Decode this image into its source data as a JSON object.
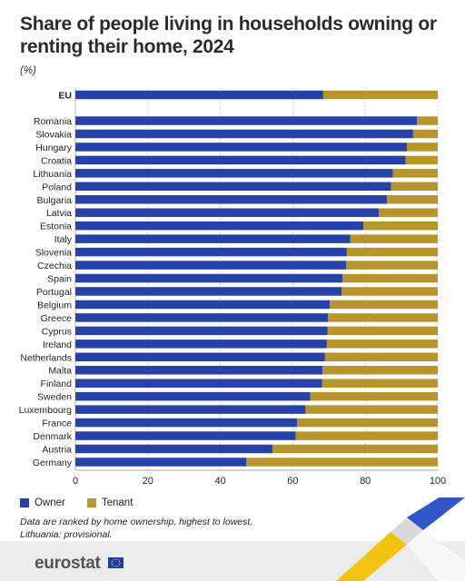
{
  "header": {
    "title": "Share of people living in households owning or renting their home, 2024",
    "unit": "(%)"
  },
  "colors": {
    "owner": "#2641a8",
    "tenant": "#b8952b",
    "grid": "#c8c8c8"
  },
  "legend": {
    "owner_label": "Owner",
    "tenant_label": "Tenant"
  },
  "notes": {
    "line1": "Data are ranked by home ownership, highest to lowest.",
    "line2": "Lithuania: provisional."
  },
  "footer": {
    "logo_text": "eurostat"
  },
  "chart_data": {
    "type": "bar",
    "orientation": "horizontal",
    "stacked": true,
    "categories": [
      "EU",
      "Romania",
      "Slovakia",
      "Hungary",
      "Croatia",
      "Lithuania",
      "Poland",
      "Bulgaria",
      "Latvia",
      "Estonia",
      "Italy",
      "Slovenia",
      "Czechia",
      "Spain",
      "Portugal",
      "Belgium",
      "Greece",
      "Cyprus",
      "Ireland",
      "Netherlands",
      "Malta",
      "Finland",
      "Sweden",
      "Luxembourg",
      "France",
      "Denmark",
      "Austria",
      "Germany"
    ],
    "series": [
      {
        "name": "Owner",
        "values": [
          68.4,
          94.3,
          93.2,
          91.5,
          91.1,
          87.6,
          87.1,
          86.0,
          83.7,
          79.5,
          75.9,
          74.9,
          74.7,
          73.7,
          73.5,
          70.2,
          69.7,
          69.6,
          69.4,
          68.9,
          68.2,
          68.1,
          64.8,
          63.5,
          61.2,
          60.8,
          54.4,
          47.2
        ]
      },
      {
        "name": "Tenant",
        "values": [
          31.6,
          5.7,
          6.8,
          8.5,
          8.9,
          12.4,
          12.9,
          14.0,
          16.3,
          20.5,
          24.1,
          25.1,
          25.3,
          26.3,
          26.5,
          29.8,
          30.3,
          30.4,
          30.6,
          31.1,
          31.8,
          31.9,
          35.2,
          36.5,
          38.8,
          39.2,
          45.6,
          52.8
        ]
      }
    ],
    "xlim": [
      0,
      100
    ],
    "xticks": [
      0,
      20,
      40,
      60,
      80,
      100
    ],
    "grid": true,
    "legend_position": "bottom-left"
  }
}
